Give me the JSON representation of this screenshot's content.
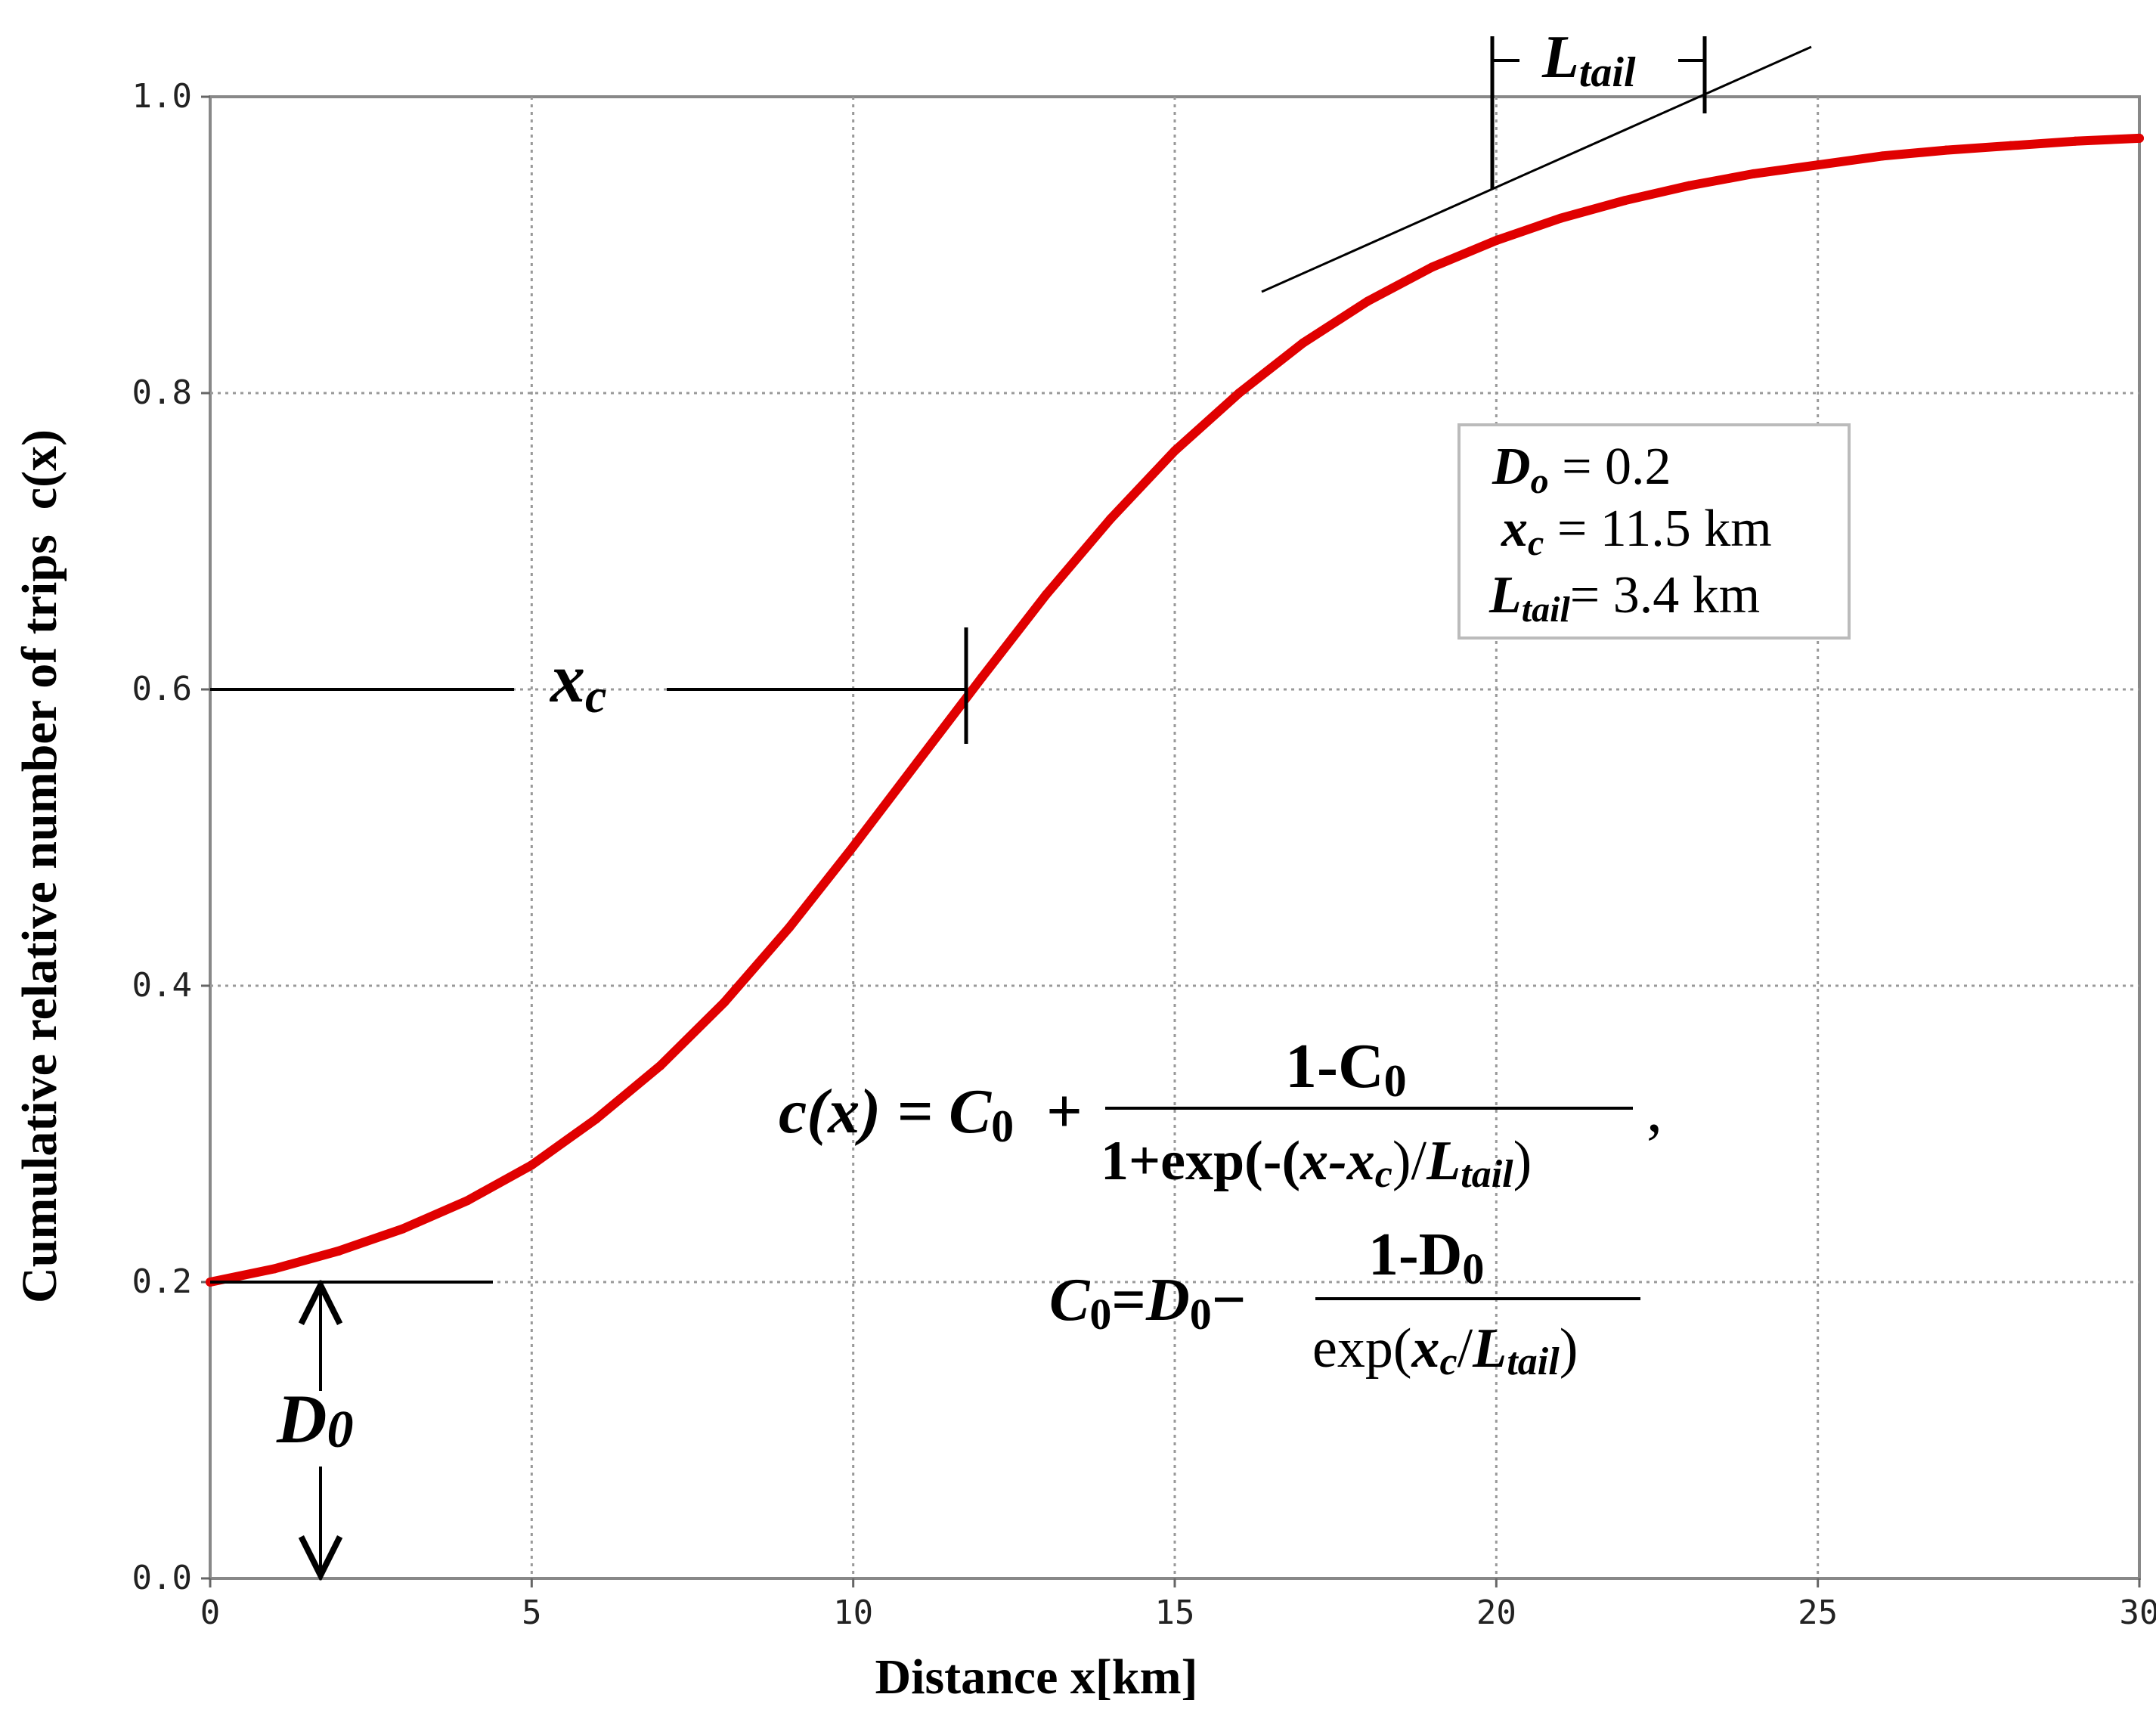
{
  "chart_data": {
    "type": "line",
    "xlabel": "Distance x[km]",
    "ylabel": "Cumulative relative number of trips  c(x)",
    "xlim": [
      0,
      30
    ],
    "ylim": [
      0.0,
      1.0
    ],
    "x_ticks": [
      "0",
      "5",
      "10",
      "15",
      "20",
      "25",
      "30"
    ],
    "y_ticks": [
      "0.0",
      "0.2",
      "0.4",
      "0.6",
      "0.8",
      "1.0"
    ],
    "grid": true,
    "series": [
      {
        "color": "#e00000",
        "x": [
          0,
          1,
          2,
          3,
          4,
          5,
          6,
          7,
          8,
          9,
          10,
          11,
          12,
          13,
          14,
          15,
          16,
          17,
          18,
          19,
          20,
          21,
          22,
          23,
          24,
          25,
          26,
          27,
          28,
          29,
          30
        ],
        "y": [
          0.2,
          0.209,
          0.221,
          0.236,
          0.255,
          0.279,
          0.31,
          0.346,
          0.389,
          0.439,
          0.494,
          0.551,
          0.608,
          0.664,
          0.715,
          0.761,
          0.8,
          0.834,
          0.862,
          0.885,
          0.903,
          0.918,
          0.93,
          0.94,
          0.948,
          0.954,
          0.96,
          0.964,
          0.967,
          0.97,
          0.972
        ]
      }
    ],
    "parameters": {
      "D0": "D",
      "D0_sub": "o",
      "D0_value": " = 0.2",
      "xc": "x",
      "xc_sub": "c",
      "xc_value": " = 11.5 km",
      "Ltail": "L",
      "Ltail_sub": "tail",
      "Ltail_value": "= 3.4 km"
    },
    "annotations": {
      "xc_label": "x",
      "xc_label_sub": "c",
      "D0_label": "D",
      "D0_label_sub": "0",
      "Ltail_label": "L",
      "Ltail_label_sub": "tail"
    },
    "equations": {
      "eq1_lhs": "c(x) = C",
      "eq1_lhs_sub": "0",
      "eq1_plus": "+",
      "eq1_num": "1-C",
      "eq1_num_sub": "0",
      "eq1_den_a": "1+exp(-(",
      "eq1_den_x": "x-x",
      "eq1_den_sub": "c",
      "eq1_den_b": ")/",
      "eq1_den_L": "L",
      "eq1_den_L_sub": "tail",
      "eq1_den_c": ")",
      "eq1_comma": ",",
      "eq2_lhs": "C",
      "eq2_lhs_sub": "0",
      "eq2_eq": "=",
      "eq2_D": "D",
      "eq2_D_sub": "0",
      "eq2_minus": "−",
      "eq2_num": "1-D",
      "eq2_num_sub": "0",
      "eq2_den_a": "exp(",
      "eq2_den_x": "x",
      "eq2_den_sub": "c",
      "eq2_den_b": "/",
      "eq2_den_L": "L",
      "eq2_den_L_sub": "tail",
      "eq2_den_c": ")"
    }
  }
}
